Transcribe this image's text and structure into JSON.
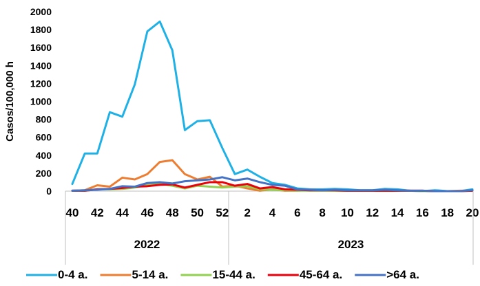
{
  "chart_data": {
    "type": "line",
    "title": "",
    "xlabel": "",
    "ylabel": "Casos/100,000 h",
    "ylim": [
      0,
      2000
    ],
    "y_ticks": [
      "0",
      "200",
      "400",
      "600",
      "800",
      "1000",
      "1200",
      "1400",
      "1600",
      "1800",
      "2000"
    ],
    "x": [
      "40",
      "41",
      "42",
      "43",
      "44",
      "45",
      "46",
      "47",
      "48",
      "49",
      "50",
      "51",
      "52",
      "1",
      "2",
      "3",
      "4",
      "5",
      "6",
      "7",
      "8",
      "9",
      "10",
      "11",
      "12",
      "13",
      "14",
      "15",
      "16",
      "17",
      "18",
      "19",
      "20"
    ],
    "x_tick_labels": [
      "40",
      "42",
      "44",
      "46",
      "48",
      "50",
      "52",
      "2",
      "4",
      "6",
      "8",
      "10",
      "12",
      "14",
      "16",
      "18",
      "20"
    ],
    "year_groups": [
      {
        "label": "2022",
        "from": "40",
        "to": "52"
      },
      {
        "label": "2023",
        "from": "1",
        "to": "20"
      }
    ],
    "grid": false,
    "legend_position": "bottom",
    "series": [
      {
        "name": "0-4 a.",
        "color": "#1fb1e6",
        "values": [
          80,
          420,
          420,
          880,
          830,
          1190,
          1780,
          1890,
          1570,
          680,
          780,
          790,
          480,
          190,
          240,
          160,
          90,
          70,
          30,
          20,
          20,
          25,
          20,
          10,
          10,
          25,
          20,
          5,
          0,
          10,
          0,
          0,
          20
        ]
      },
      {
        "name": "5-14 a.",
        "color": "#ed7d31",
        "values": [
          5,
          10,
          65,
          50,
          150,
          130,
          190,
          325,
          345,
          190,
          130,
          160,
          50,
          60,
          30,
          5,
          20,
          5,
          5,
          15,
          10,
          5,
          5,
          5,
          5,
          5,
          5,
          5,
          5,
          0,
          0,
          5,
          5
        ]
      },
      {
        "name": "15-44 a.",
        "color": "#92d050",
        "values": [
          5,
          5,
          20,
          20,
          25,
          40,
          70,
          80,
          60,
          30,
          60,
          50,
          40,
          50,
          55,
          20,
          15,
          10,
          5,
          5,
          5,
          5,
          5,
          5,
          5,
          5,
          5,
          5,
          0,
          0,
          0,
          0,
          5
        ]
      },
      {
        "name": "45-64 a.",
        "color": "#e8000b",
        "values": [
          5,
          5,
          20,
          25,
          35,
          50,
          55,
          70,
          75,
          40,
          70,
          100,
          100,
          60,
          80,
          30,
          45,
          20,
          15,
          10,
          10,
          10,
          5,
          5,
          5,
          5,
          5,
          5,
          5,
          0,
          0,
          0,
          5
        ]
      },
      {
        "name": ">64 a.",
        "color": "#4472c4",
        "values": [
          5,
          10,
          15,
          25,
          55,
          50,
          90,
          100,
          85,
          110,
          120,
          130,
          155,
          120,
          140,
          100,
          70,
          60,
          20,
          15,
          10,
          15,
          10,
          10,
          10,
          15,
          10,
          5,
          5,
          0,
          0,
          0,
          10
        ]
      }
    ]
  }
}
